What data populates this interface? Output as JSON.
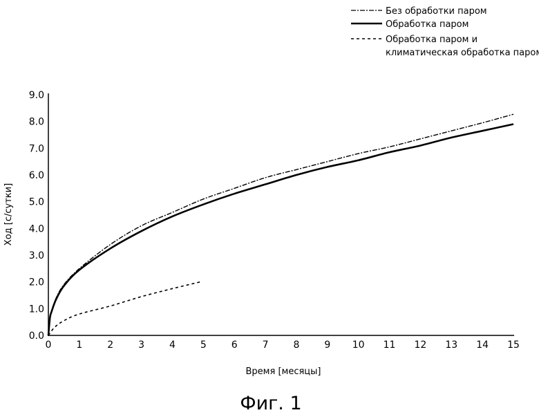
{
  "chart_data": {
    "type": "line",
    "title": "",
    "caption": "Фиг. 1",
    "xlabel": "Время [месяцы]",
    "ylabel": "Ход [с/сутки]",
    "xlim": [
      0,
      15
    ],
    "ylim": [
      0,
      9
    ],
    "xticks": [
      "0",
      "1",
      "2",
      "3",
      "4",
      "5",
      "6",
      "7",
      "8",
      "9",
      "10",
      "11",
      "12",
      "13",
      "14",
      "15"
    ],
    "yticks": [
      "0.0",
      "1.0",
      "2.0",
      "3.0",
      "4.0",
      "5.0",
      "6.0",
      "7.0",
      "8.0",
      "9.0"
    ],
    "grid": false,
    "legend_position": "top-right",
    "series": [
      {
        "name": "Без обработки паром",
        "style": "dash-dot",
        "x": [
          0,
          0.05,
          0.1,
          0.25,
          0.5,
          1,
          2,
          3,
          4,
          5,
          6,
          7,
          8,
          9,
          10,
          11,
          12,
          13,
          14,
          15
        ],
        "y": [
          0,
          0.65,
          0.9,
          1.4,
          1.9,
          2.5,
          3.4,
          4.1,
          4.6,
          5.1,
          5.5,
          5.9,
          6.2,
          6.5,
          6.8,
          7.05,
          7.35,
          7.65,
          7.95,
          8.27
        ]
      },
      {
        "name": "Обработка паром",
        "style": "solid",
        "x": [
          0,
          0.05,
          0.1,
          0.25,
          0.5,
          1,
          2,
          3,
          4,
          5,
          6,
          7,
          8,
          9,
          10,
          11,
          12,
          13,
          14,
          15
        ],
        "y": [
          0,
          0.65,
          0.88,
          1.35,
          1.85,
          2.45,
          3.25,
          3.9,
          4.45,
          4.9,
          5.3,
          5.65,
          6.0,
          6.3,
          6.55,
          6.85,
          7.1,
          7.4,
          7.65,
          7.9
        ]
      },
      {
        "name": "Обработка паром и климатическая обработка паром",
        "style": "dashed",
        "x": [
          0,
          0.2,
          0.5,
          1,
          2,
          3,
          4,
          4.9
        ],
        "y": [
          0,
          0.3,
          0.55,
          0.8,
          1.1,
          1.45,
          1.75,
          2.0
        ]
      }
    ],
    "legend": {
      "line1": "Без обработки паром",
      "line2": "Обработка паром",
      "line3a": "Обработка паром и",
      "line3b": "климатическая обработка паром"
    }
  }
}
